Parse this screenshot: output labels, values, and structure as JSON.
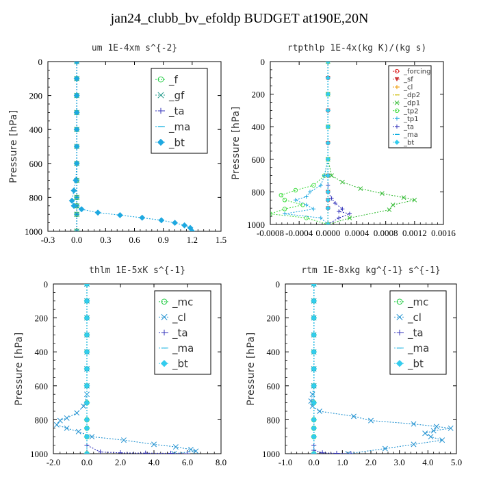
{
  "page": {
    "title": "jan24_clubb_bv_efoldp  BUDGET at190E,20N"
  },
  "chart_data": [
    {
      "type": "line",
      "title": "um  1E-4xm s^{-2}",
      "ylabel": "Pressure [hPa]",
      "xlim": [
        -0.3,
        1.5
      ],
      "ylim": [
        1000,
        0
      ],
      "xticks": [
        "-0.3",
        "0.0",
        "0.3",
        "0.6",
        "0.9",
        "1.2",
        "1.5"
      ],
      "yticks": [
        "0",
        "200",
        "400",
        "600",
        "800",
        "1000"
      ],
      "legend_style": "large",
      "series": [
        {
          "name": "_f",
          "color": "#22cc44",
          "marker": "circle",
          "x": [
            0,
            0,
            0,
            0,
            0,
            0,
            0,
            0,
            0,
            0,
            0,
            0
          ],
          "y": [
            0,
            100,
            200,
            300,
            400,
            500,
            600,
            700,
            800,
            850,
            900,
            1000
          ]
        },
        {
          "name": "_gf",
          "color": "#2a9d8f",
          "marker": "x",
          "x": [
            0,
            0,
            0,
            0,
            0,
            0,
            0,
            0,
            0,
            0,
            0,
            0
          ],
          "y": [
            0,
            100,
            200,
            300,
            400,
            500,
            600,
            700,
            800,
            850,
            900,
            1000
          ]
        },
        {
          "name": "_ta",
          "color": "#3333bb",
          "marker": "plus",
          "x": [
            0,
            0,
            0,
            0,
            0,
            0,
            0,
            0,
            0,
            0,
            0,
            0
          ],
          "y": [
            0,
            100,
            200,
            300,
            400,
            500,
            600,
            700,
            800,
            850,
            900,
            1000
          ]
        },
        {
          "name": "_ma",
          "color": "#00aadd",
          "marker": "dash",
          "x": [
            0,
            0,
            0,
            0,
            0,
            0,
            0,
            0,
            0,
            0,
            0,
            0
          ],
          "y": [
            0,
            100,
            200,
            300,
            400,
            500,
            600,
            700,
            800,
            850,
            900,
            1000
          ]
        },
        {
          "name": "_bt",
          "color": "#1ea8e0",
          "marker": "diamond",
          "x": [
            0,
            0,
            0,
            0,
            0,
            0,
            0,
            -0.01,
            -0.03,
            -0.05,
            -0.03,
            0.05,
            0.22,
            0.45,
            0.68,
            0.88,
            1.02,
            1.12,
            1.18,
            1.2
          ],
          "y": [
            0,
            100,
            200,
            300,
            400,
            500,
            600,
            700,
            760,
            820,
            850,
            870,
            890,
            905,
            920,
            935,
            950,
            965,
            980,
            1000
          ]
        }
      ]
    },
    {
      "type": "line",
      "title": "rtpthlp  1E-4x(kg K)/(kg s)",
      "ylabel": "Pressure [hPa]",
      "xlim": [
        -0.0008,
        0.0016
      ],
      "ylim": [
        1000,
        0
      ],
      "xticks": [
        "-0.0008",
        "-0.0004",
        "0.0000",
        "0.0004",
        "0.0008",
        "0.0012",
        "0.0016"
      ],
      "yticks": [
        "0",
        "200",
        "400",
        "600",
        "800",
        "1000"
      ],
      "legend_style": "small",
      "series": [
        {
          "name": "_forcing",
          "color": "#dd2222",
          "marker": "circle",
          "x": [
            0,
            0,
            0,
            0,
            0,
            0,
            0,
            0,
            0,
            0,
            0,
            0
          ],
          "y": [
            0,
            100,
            200,
            300,
            400,
            500,
            600,
            700,
            800,
            850,
            900,
            1000
          ]
        },
        {
          "name": "_sf",
          "color": "#cc3333",
          "marker": "triangle",
          "x": [
            0,
            0,
            0,
            0,
            0,
            0,
            0,
            0,
            0,
            0,
            0,
            0
          ],
          "y": [
            0,
            100,
            200,
            300,
            400,
            500,
            600,
            700,
            800,
            850,
            900,
            1000
          ]
        },
        {
          "name": "_cl",
          "color": "#ee9900",
          "marker": "plus",
          "x": [
            0,
            0,
            0,
            0,
            0,
            0,
            0,
            0,
            0,
            0,
            0,
            0
          ],
          "y": [
            0,
            100,
            200,
            300,
            400,
            500,
            600,
            700,
            800,
            850,
            900,
            1000
          ]
        },
        {
          "name": "_dp2",
          "color": "#ccbb00",
          "marker": "dash",
          "x": [
            0,
            0,
            0,
            0,
            0,
            0,
            0,
            0,
            0,
            0,
            0,
            0
          ],
          "y": [
            0,
            100,
            200,
            300,
            400,
            500,
            600,
            700,
            800,
            850,
            900,
            1000
          ]
        },
        {
          "name": "_dp1",
          "color": "#33bb33",
          "marker": "x",
          "x": [
            0,
            0,
            0,
            0,
            5e-05,
            0.0002,
            0.00045,
            0.00075,
            0.00105,
            0.0012,
            0.0009,
            0.00085,
            0.0003,
            0
          ],
          "y": [
            0,
            200,
            400,
            600,
            700,
            740,
            780,
            810,
            835,
            850,
            880,
            910,
            960,
            1000
          ]
        },
        {
          "name": "_tp2",
          "color": "#44dd44",
          "marker": "circle",
          "x": [
            0,
            0,
            0,
            0,
            -5e-05,
            -0.0002,
            -0.00045,
            -0.00065,
            -0.0006,
            -0.00035,
            -0.0006,
            -0.0008,
            -0.0003,
            0
          ],
          "y": [
            0,
            200,
            400,
            600,
            700,
            760,
            790,
            820,
            850,
            880,
            905,
            935,
            960,
            1000
          ]
        },
        {
          "name": "_tp1",
          "color": "#1ea8e0",
          "marker": "plus",
          "x": [
            0,
            0,
            0,
            0,
            -5e-05,
            -0.0001,
            -0.00025,
            -0.0003,
            -0.00045,
            -0.0003,
            -0.0002,
            -0.0006,
            -0.0001,
            0
          ],
          "y": [
            0,
            200,
            400,
            600,
            700,
            760,
            800,
            830,
            850,
            880,
            905,
            935,
            960,
            1000
          ]
        },
        {
          "name": "_ta",
          "color": "#3333bb",
          "marker": "plus",
          "x": [
            0,
            0,
            0,
            0,
            0,
            0,
            0,
            5e-05,
            0.0001,
            0.0002,
            0.00015,
            0.0003,
            0.00015,
            0
          ],
          "y": [
            0,
            200,
            400,
            600,
            700,
            760,
            800,
            840,
            870,
            905,
            920,
            935,
            960,
            1000
          ]
        },
        {
          "name": "_ma",
          "color": "#00aadd",
          "marker": "dash",
          "x": [
            0,
            0,
            0,
            0,
            0,
            0,
            0,
            0,
            0,
            0,
            0,
            0
          ],
          "y": [
            0,
            100,
            200,
            300,
            400,
            500,
            600,
            700,
            800,
            850,
            900,
            1000
          ]
        },
        {
          "name": "_bt",
          "color": "#33ccee",
          "marker": "diamond",
          "x": [
            0,
            0,
            0,
            0,
            0,
            0,
            0,
            0,
            0,
            0,
            0,
            0
          ],
          "y": [
            0,
            100,
            200,
            300,
            400,
            500,
            600,
            700,
            800,
            850,
            900,
            1000
          ]
        }
      ]
    },
    {
      "type": "line",
      "title": "thlm  1E-5xK s^{-1}",
      "ylabel": "Pressure [hPa]",
      "xlim": [
        -2.0,
        8.0
      ],
      "ylim": [
        1000,
        0
      ],
      "xticks": [
        "-2.0",
        "0.0",
        "2.0",
        "4.0",
        "6.0",
        "8.0"
      ],
      "yticks": [
        "0",
        "200",
        "400",
        "600",
        "800",
        "1000"
      ],
      "legend_style": "large",
      "series": [
        {
          "name": "_mc",
          "color": "#22cc44",
          "marker": "circle",
          "x": [
            0,
            0,
            0,
            0,
            0,
            0,
            0,
            0,
            0,
            0,
            0,
            0
          ],
          "y": [
            0,
            100,
            200,
            300,
            400,
            500,
            600,
            700,
            800,
            850,
            900,
            1000
          ]
        },
        {
          "name": "_cl",
          "color": "#1e90d0",
          "marker": "x",
          "x": [
            0,
            0,
            0,
            0,
            0,
            0,
            0,
            0,
            -0.2,
            -0.6,
            -1.2,
            -1.6,
            -1.8,
            -1.2,
            -0.5,
            0.3,
            2.2,
            4.0,
            5.3,
            6.2,
            6.5,
            5.2
          ],
          "y": [
            0,
            100,
            200,
            300,
            400,
            500,
            600,
            650,
            720,
            760,
            790,
            805,
            830,
            850,
            870,
            900,
            920,
            945,
            960,
            975,
            985,
            1000
          ]
        },
        {
          "name": "_ta",
          "color": "#3333bb",
          "marker": "plus",
          "x": [
            0,
            0,
            0,
            0,
            0,
            0,
            0,
            0,
            0,
            0.8,
            2.0,
            3.5,
            5.0,
            6.0
          ],
          "y": [
            0,
            200,
            400,
            600,
            700,
            800,
            850,
            900,
            950,
            990,
            995,
            997,
            998,
            1000
          ]
        },
        {
          "name": "_ma",
          "color": "#00aadd",
          "marker": "dash",
          "x": [
            0,
            0,
            0,
            0,
            0,
            0,
            0,
            0,
            0,
            0,
            0,
            0
          ],
          "y": [
            0,
            100,
            200,
            300,
            400,
            500,
            600,
            700,
            800,
            850,
            900,
            1000
          ]
        },
        {
          "name": "_bt",
          "color": "#33ccee",
          "marker": "diamond",
          "x": [
            0,
            0,
            0,
            0,
            0,
            0,
            0,
            0,
            0,
            0,
            0,
            0
          ],
          "y": [
            0,
            100,
            200,
            300,
            400,
            500,
            600,
            700,
            800,
            850,
            900,
            1000
          ]
        }
      ]
    },
    {
      "type": "line",
      "title": "rtm  1E-8xkg kg^{-1} s^{-1}",
      "ylabel": "Pressure [hPa]",
      "xlim": [
        -1.0,
        5.0
      ],
      "ylim": [
        1000,
        0
      ],
      "xticks": [
        "-1.0",
        "0.0",
        "1.0",
        "2.0",
        "3.0",
        "4.0",
        "5.0"
      ],
      "yticks": [
        "0",
        "200",
        "400",
        "600",
        "800",
        "1000"
      ],
      "legend_style": "large",
      "series": [
        {
          "name": "_mc",
          "color": "#22cc44",
          "marker": "circle",
          "x": [
            0,
            0,
            0,
            0,
            0,
            0,
            0,
            0,
            0,
            0,
            0,
            0
          ],
          "y": [
            0,
            100,
            200,
            300,
            400,
            500,
            600,
            700,
            800,
            850,
            900,
            1000
          ]
        },
        {
          "name": "_cl",
          "color": "#1e90d0",
          "marker": "x",
          "x": [
            0,
            0,
            0,
            0,
            0,
            0,
            0,
            -0.05,
            -0.1,
            -0.05,
            0.2,
            1.4,
            2.0,
            3.5,
            4.3,
            4.8,
            4.2,
            3.9,
            4.1,
            4.5,
            3.5,
            2.5,
            1.2
          ],
          "y": [
            0,
            100,
            200,
            300,
            400,
            500,
            600,
            650,
            690,
            720,
            750,
            780,
            805,
            825,
            840,
            850,
            865,
            880,
            900,
            920,
            945,
            970,
            1000
          ]
        },
        {
          "name": "_ta",
          "color": "#3333bb",
          "marker": "plus",
          "x": [
            0,
            0,
            0,
            0,
            0,
            0,
            0,
            0,
            0,
            0.3,
            0.8,
            1.3
          ],
          "y": [
            0,
            200,
            400,
            600,
            700,
            800,
            900,
            950,
            980,
            995,
            998,
            1000
          ]
        },
        {
          "name": "_ma",
          "color": "#00aadd",
          "marker": "dash",
          "x": [
            0,
            0,
            0,
            0,
            0,
            0,
            0,
            0,
            0,
            0,
            0,
            0
          ],
          "y": [
            0,
            100,
            200,
            300,
            400,
            500,
            600,
            700,
            800,
            850,
            900,
            1000
          ]
        },
        {
          "name": "_bt",
          "color": "#33ccee",
          "marker": "diamond",
          "x": [
            0,
            0,
            0,
            0,
            0,
            0,
            0,
            0,
            0,
            0,
            0,
            0
          ],
          "y": [
            0,
            100,
            200,
            300,
            400,
            500,
            600,
            700,
            800,
            850,
            900,
            1000
          ]
        }
      ]
    }
  ]
}
